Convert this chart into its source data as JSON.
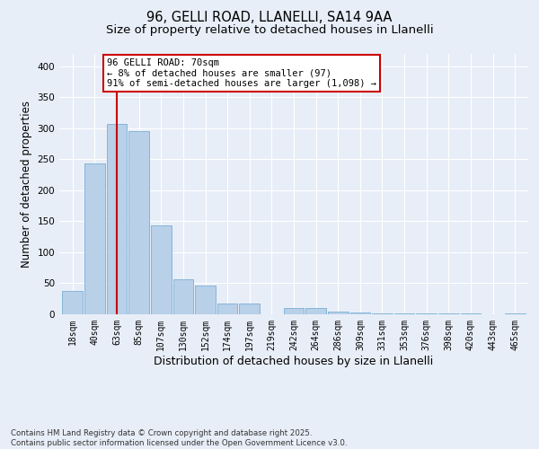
{
  "title1": "96, GELLI ROAD, LLANELLI, SA14 9AA",
  "title2": "Size of property relative to detached houses in Llanelli",
  "xlabel": "Distribution of detached houses by size in Llanelli",
  "ylabel": "Number of detached properties",
  "categories": [
    "18sqm",
    "40sqm",
    "63sqm",
    "85sqm",
    "107sqm",
    "130sqm",
    "152sqm",
    "174sqm",
    "197sqm",
    "219sqm",
    "242sqm",
    "264sqm",
    "286sqm",
    "309sqm",
    "331sqm",
    "353sqm",
    "376sqm",
    "398sqm",
    "420sqm",
    "443sqm",
    "465sqm"
  ],
  "values": [
    37,
    243,
    307,
    295,
    143,
    57,
    47,
    18,
    18,
    0,
    10,
    10,
    5,
    3,
    2,
    2,
    2,
    2,
    2,
    0,
    2
  ],
  "bar_color": "#b8d0e8",
  "bar_edge_color": "#7aafd4",
  "vline_x_index": 2,
  "vline_color": "#cc0000",
  "annotation_text": "96 GELLI ROAD: 70sqm\n← 8% of detached houses are smaller (97)\n91% of semi-detached houses are larger (1,098) →",
  "annotation_box_color": "#ffffff",
  "annotation_box_edge_color": "#cc0000",
  "ylim": [
    0,
    420
  ],
  "yticks": [
    0,
    50,
    100,
    150,
    200,
    250,
    300,
    350,
    400
  ],
  "footnote": "Contains HM Land Registry data © Crown copyright and database right 2025.\nContains public sector information licensed under the Open Government Licence v3.0.",
  "background_color": "#e8eef8",
  "grid_color": "#ffffff",
  "title_fontsize": 10.5,
  "subtitle_fontsize": 9.5,
  "tick_fontsize": 7,
  "ylabel_fontsize": 8.5,
  "xlabel_fontsize": 9,
  "annotation_fontsize": 7.5,
  "footnote_fontsize": 6.2
}
